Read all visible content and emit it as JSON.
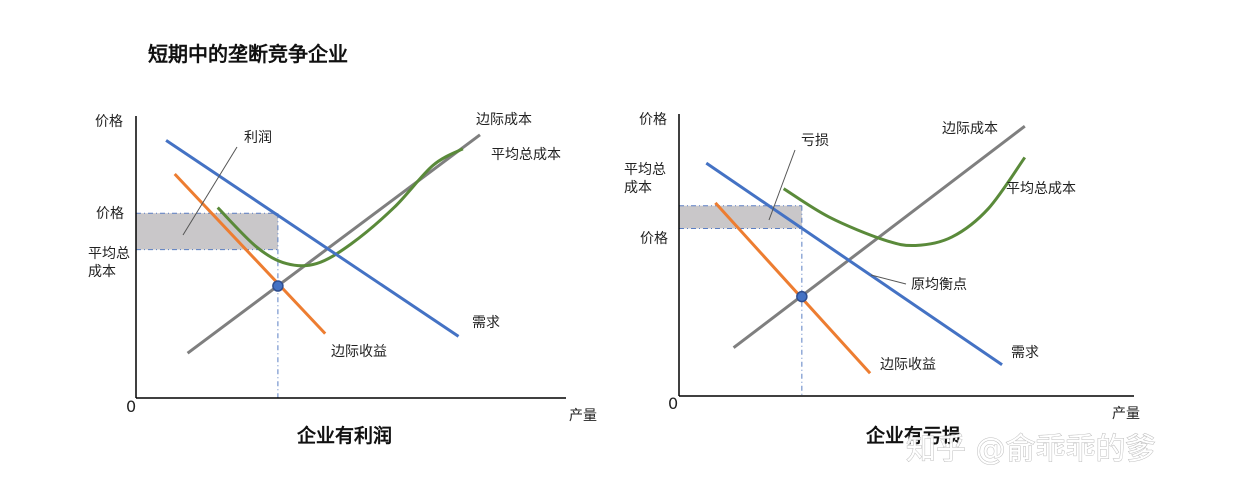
{
  "title": "短期中的垄断竞争企业",
  "watermark": "知乎 @俞乖乖的爹",
  "colors": {
    "mc": "#7f7f7f",
    "atc": "#5a8a3a",
    "demand": "#4472c4",
    "mr": "#ed7d31",
    "shade": "#c9c7c9",
    "dot_fill": "#4472c4",
    "dot_stroke": "#2f4e8f",
    "guide": "#5b7fc4",
    "axis": "#000000"
  },
  "chart_data": [
    {
      "type": "line",
      "caption": "企业有利润",
      "ylabel": "价格",
      "xlabel": "产量",
      "origin_label": "0",
      "xlim": [
        0,
        100
      ],
      "ylim": [
        0,
        100
      ],
      "series": [
        {
          "id": "mc",
          "name": "边际成本",
          "color_key": "mc",
          "points": [
            [
              12,
              16
            ],
            [
              80,
              94
            ]
          ]
        },
        {
          "id": "atc",
          "name": "平均总成本",
          "color_key": "atc",
          "points": [
            [
              19,
              68
            ],
            [
              28,
              54
            ],
            [
              35,
              48
            ],
            [
              42,
              48
            ],
            [
              50,
              55
            ],
            [
              60,
              68
            ],
            [
              69,
              83
            ],
            [
              76,
              89
            ]
          ]
        },
        {
          "id": "demand",
          "name": "需求",
          "color_key": "demand",
          "points": [
            [
              7,
              92
            ],
            [
              75,
              22
            ]
          ]
        },
        {
          "id": "mr",
          "name": "边际收益",
          "color_key": "mr",
          "points": [
            [
              9,
              80
            ],
            [
              44,
              23
            ]
          ]
        }
      ],
      "shaded_region": {
        "name": "利润",
        "x": [
          0,
          33
        ],
        "y": [
          53,
          66
        ]
      },
      "guides": {
        "price_y": 66,
        "atc_y": 53,
        "quantity_x": 33,
        "mr_eq_mc_y": 40
      },
      "y_marks": [
        {
          "text": "价格",
          "y": 66
        },
        {
          "text": "平均总",
          "y": 54
        },
        {
          "text": "成本",
          "y": 47
        }
      ],
      "equilibrium_point": [
        33,
        40
      ]
    },
    {
      "type": "line",
      "caption": "企业有亏损",
      "ylabel": "价格",
      "xlabel": "产量",
      "origin_label": "0",
      "xlim": [
        0,
        100
      ],
      "ylim": [
        0,
        100
      ],
      "series": [
        {
          "id": "mc",
          "name": "边际成本",
          "color_key": "mc",
          "points": [
            [
              12,
              17
            ],
            [
              76,
              95
            ]
          ]
        },
        {
          "id": "atc",
          "name": "平均总成本",
          "color_key": "atc",
          "points": [
            [
              23,
              73
            ],
            [
              33,
              63
            ],
            [
              45,
              55
            ],
            [
              52,
              53
            ],
            [
              60,
              56
            ],
            [
              68,
              66
            ],
            [
              76,
              84
            ]
          ]
        },
        {
          "id": "demand",
          "name": "需求",
          "color_key": "demand",
          "points": [
            [
              6,
              82
            ],
            [
              71,
              11
            ]
          ]
        },
        {
          "id": "mr",
          "name": "边际收益",
          "color_key": "mr",
          "points": [
            [
              8,
              68
            ],
            [
              42,
              8
            ]
          ]
        }
      ],
      "shaded_region": {
        "name": "亏损",
        "x": [
          0,
          27
        ],
        "y": [
          59,
          67
        ]
      },
      "guides": {
        "price_y": 59,
        "atc_y": 67,
        "quantity_x": 27,
        "mr_eq_mc_y": 35
      },
      "y_marks": [
        {
          "text": "平均总",
          "y": 82
        },
        {
          "text": "成本",
          "y": 75
        },
        {
          "text": "价格",
          "y": 58
        }
      ],
      "equilibrium_point": [
        27,
        35
      ],
      "extra_annotation": {
        "text": "原均衡点"
      }
    }
  ]
}
